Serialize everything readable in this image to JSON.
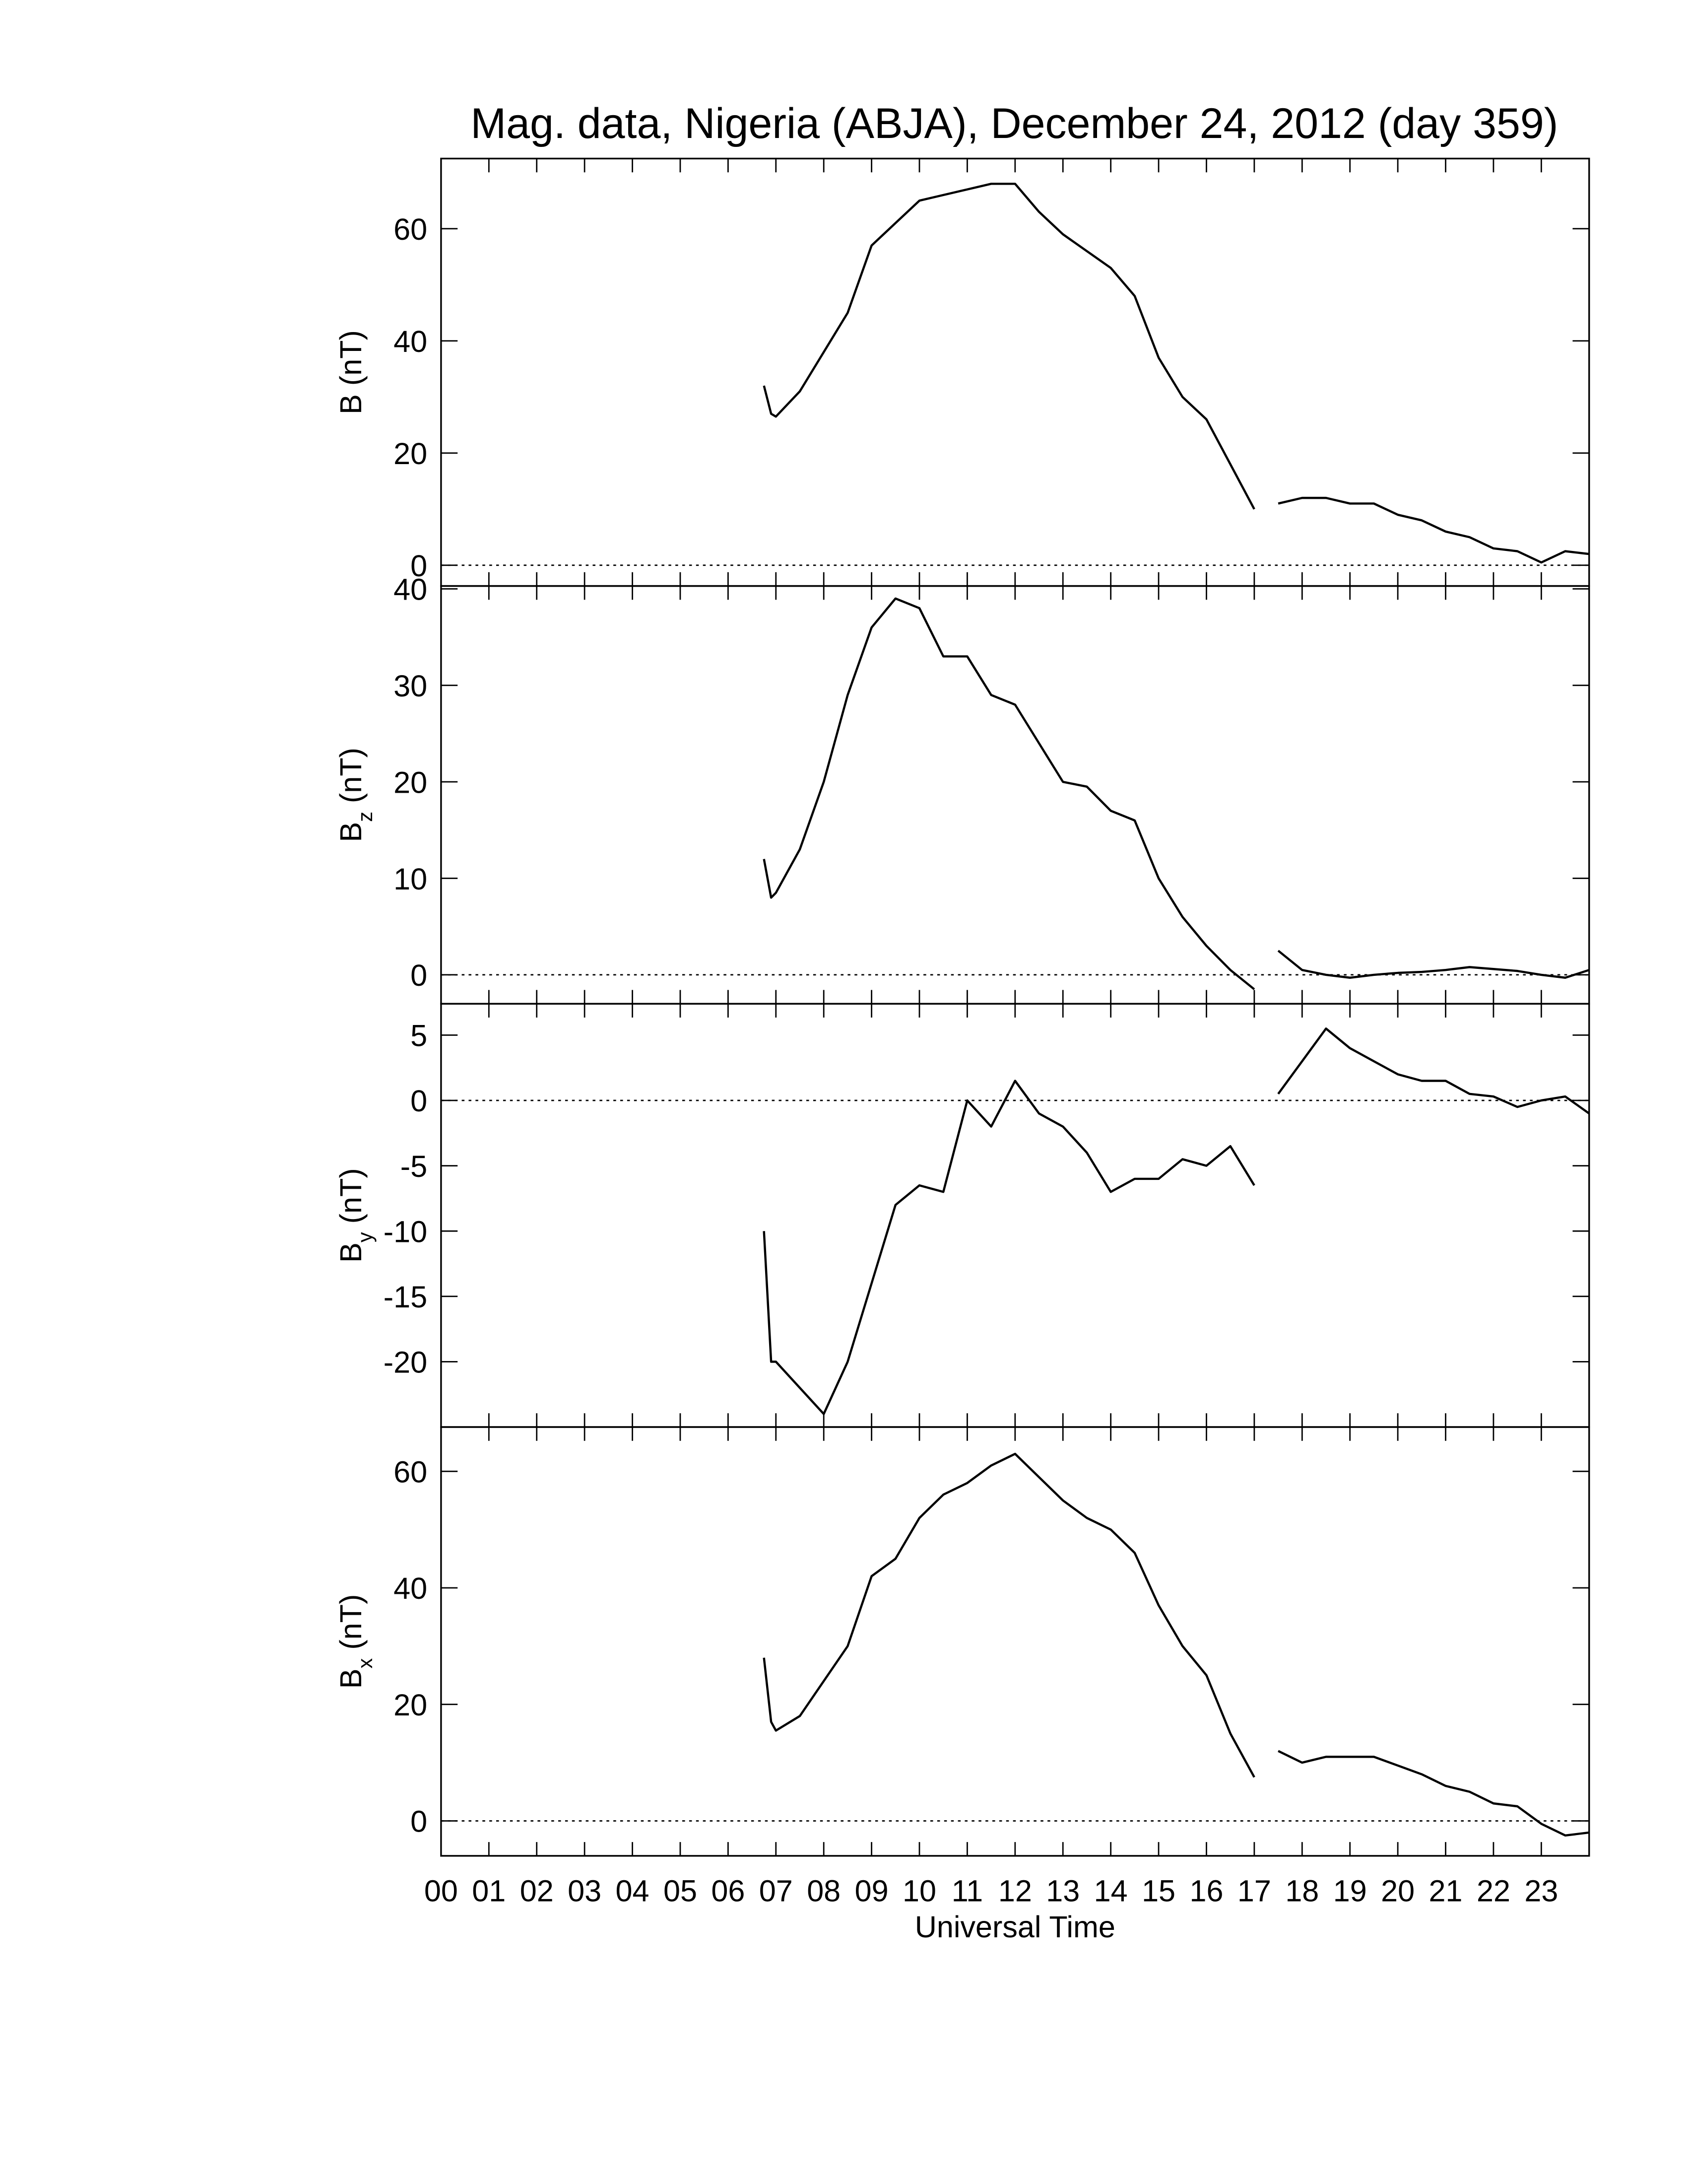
{
  "chart_data": [
    {
      "type": "line",
      "title": "Mag. data, Nigeria (ABJA), December 24, 2012 (day 359)",
      "ylabel": [
        "B (nT)"
      ],
      "x": [
        6.75,
        6.9,
        7.0,
        7.5,
        8,
        8.5,
        9,
        9.5,
        10,
        10.5,
        11,
        11.5,
        12,
        12.5,
        13,
        13.5,
        14,
        14.5,
        15,
        15.5,
        16,
        16.5,
        17,
        17.25,
        17.5,
        18,
        18.5,
        19,
        19.5,
        20,
        20.5,
        21,
        21.5,
        22,
        22.5,
        23,
        23.5,
        24
      ],
      "series": [
        {
          "color": "#000000",
          "values": [
            32,
            27,
            26.5,
            31,
            38,
            45,
            57,
            61,
            65,
            66,
            67,
            68,
            68,
            63,
            59,
            56,
            53,
            48,
            37,
            30,
            26,
            18,
            10,
            null,
            11,
            12,
            12,
            11,
            11,
            9,
            8,
            6,
            5,
            3,
            2.5,
            0.5,
            2.5,
            2
          ]
        }
      ],
      "xlim": [
        0,
        24
      ],
      "ylim": [
        -3.7,
        72.5
      ],
      "yticks": [
        0,
        20,
        40,
        60
      ],
      "reference_line": 0
    },
    {
      "type": "line",
      "ylabel": [
        "B",
        "z",
        " (nT)"
      ],
      "x": [
        6.75,
        6.9,
        7.0,
        7.5,
        8,
        8.5,
        9,
        9.5,
        10,
        10.5,
        11,
        11.5,
        12,
        12.5,
        13,
        13.5,
        14,
        14.5,
        15,
        15.5,
        16,
        16.5,
        17,
        17.25,
        17.5,
        18,
        18.5,
        19,
        19.5,
        20,
        20.5,
        21,
        21.5,
        22,
        22.5,
        23,
        23.5,
        24
      ],
      "series": [
        {
          "color": "#000000",
          "values": [
            12,
            8,
            8.5,
            13,
            20,
            29,
            36,
            39,
            38,
            33,
            33,
            29,
            28,
            24,
            20,
            19.5,
            17,
            16,
            10,
            6,
            3,
            0.5,
            -1.5,
            null,
            2.5,
            0.5,
            0,
            -0.3,
            0,
            0.2,
            0.3,
            0.5,
            0.8,
            0.6,
            0.4,
            0,
            -0.3,
            0.5
          ]
        }
      ],
      "xlim": [
        0,
        24
      ],
      "ylim": [
        -3,
        40.3
      ],
      "yticks": [
        0,
        10,
        20,
        30,
        40
      ],
      "reference_line": 0
    },
    {
      "type": "line",
      "ylabel": [
        "B",
        "y",
        " (nT)"
      ],
      "x": [
        6.75,
        6.9,
        7.0,
        7.5,
        8,
        8.5,
        9,
        9.5,
        10,
        10.5,
        11,
        11.5,
        12,
        12.5,
        13,
        13.5,
        14,
        14.5,
        15,
        15.5,
        16,
        16.5,
        17,
        17.25,
        17.5,
        18,
        18.5,
        19,
        19.5,
        20,
        20.5,
        21,
        21.5,
        22,
        22.5,
        23,
        23.5,
        24
      ],
      "series": [
        {
          "color": "#000000",
          "values": [
            -10,
            -20,
            -20,
            -22,
            -24,
            -20,
            -14,
            -8,
            -6.5,
            -7,
            0,
            -2,
            1.5,
            -1,
            -2,
            -4,
            -7,
            -6,
            -6,
            -4.5,
            -5,
            -3.5,
            -6.5,
            null,
            0.5,
            3,
            5.5,
            4,
            3,
            2,
            1.5,
            1.5,
            0.5,
            0.3,
            -0.5,
            0,
            0.3,
            -1
          ]
        }
      ],
      "xlim": [
        0,
        24
      ],
      "ylim": [
        -25,
        7.4
      ],
      "yticks": [
        5,
        0,
        -5,
        -10,
        -15,
        -20
      ],
      "reference_line": 0
    },
    {
      "type": "line",
      "ylabel": [
        "B",
        "x",
        " (nT)"
      ],
      "xlabel": "Universal Time",
      "x": [
        6.75,
        6.9,
        7.0,
        7.5,
        8,
        8.5,
        9,
        9.5,
        10,
        10.5,
        11,
        11.5,
        12,
        12.5,
        13,
        13.5,
        14,
        14.5,
        15,
        15.5,
        16,
        16.5,
        17,
        17.25,
        17.5,
        18,
        18.5,
        19,
        19.5,
        20,
        20.5,
        21,
        21.5,
        22,
        22.5,
        23,
        23.5,
        24
      ],
      "series": [
        {
          "color": "#000000",
          "values": [
            28,
            17,
            15.5,
            18,
            24,
            30,
            42,
            45,
            52,
            56,
            58,
            61,
            63,
            59,
            55,
            52,
            50,
            46,
            37,
            30,
            25,
            15,
            7.5,
            null,
            12,
            10,
            11,
            11,
            11,
            9.5,
            8,
            6,
            5,
            3,
            2.5,
            -0.5,
            -2.5,
            -2
          ]
        }
      ],
      "xlim": [
        0,
        24
      ],
      "ylim": [
        -6,
        67.6
      ],
      "yticks": [
        0,
        20,
        40,
        60
      ],
      "reference_line": 0,
      "xticks": [
        {
          "value": 0,
          "label": "00"
        },
        {
          "value": 1,
          "label": "01"
        },
        {
          "value": 2,
          "label": "02"
        },
        {
          "value": 3,
          "label": "03"
        },
        {
          "value": 4,
          "label": "04"
        },
        {
          "value": 5,
          "label": "05"
        },
        {
          "value": 6,
          "label": "06"
        },
        {
          "value": 7,
          "label": "07"
        },
        {
          "value": 8,
          "label": "08"
        },
        {
          "value": 9,
          "label": "09"
        },
        {
          "value": 10,
          "label": "10"
        },
        {
          "value": 11,
          "label": "11"
        },
        {
          "value": 12,
          "label": "12"
        },
        {
          "value": 13,
          "label": "13"
        },
        {
          "value": 14,
          "label": "14"
        },
        {
          "value": 15,
          "label": "15"
        },
        {
          "value": 16,
          "label": "16"
        },
        {
          "value": 17,
          "label": "17"
        },
        {
          "value": 18,
          "label": "18"
        },
        {
          "value": 19,
          "label": "19"
        },
        {
          "value": 20,
          "label": "20"
        },
        {
          "value": 21,
          "label": "21"
        },
        {
          "value": 22,
          "label": "22"
        },
        {
          "value": 23,
          "label": "23"
        }
      ]
    }
  ]
}
